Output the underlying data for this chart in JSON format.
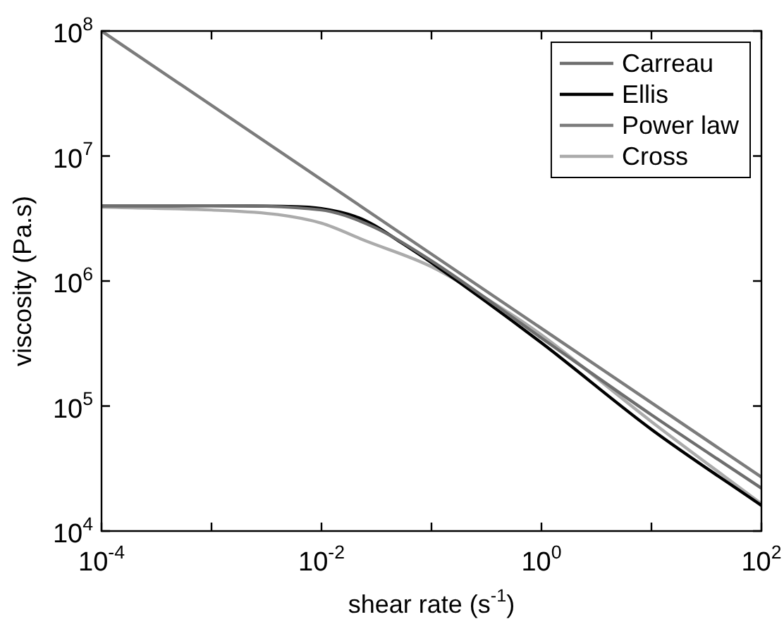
{
  "chart_data": {
    "type": "line",
    "xlabel": "shear rate (s$^{-1}$)",
    "ylabel": "viscosity (Pa.s)",
    "log": "xy",
    "grid": false,
    "legend": "top right",
    "marker": "none",
    "line_style": "solid",
    "xlim": [
      0.0001,
      100
    ],
    "ylim": [
      10000,
      100000000
    ],
    "xticks": [
      {
        "value": 0.0001,
        "label": "10$^{-4}$"
      },
      {
        "value": 0.001,
        "label": null
      },
      {
        "value": 0.01,
        "label": "10$^{-2}$"
      },
      {
        "value": 0.1,
        "label": null
      },
      {
        "value": 1,
        "label": "10$^{0}$"
      },
      {
        "value": 10,
        "label": null
      },
      {
        "value": 100,
        "label": "10$^{2}$"
      }
    ],
    "yticks": [
      {
        "value": 10000,
        "label": "10$^{4}$"
      },
      {
        "value": 100000,
        "label": "10$^{5}$"
      },
      {
        "value": 1000000,
        "label": "10$^{6}$"
      },
      {
        "value": 10000000,
        "label": "10$^{7}$"
      },
      {
        "value": 100000000,
        "label": "10$^{8}$"
      }
    ],
    "series": [
      {
        "name": "Carreau",
        "color": "#6e6e6e",
        "x": [
          0.0001,
          0.001,
          0.01,
          0.03,
          0.1,
          1,
          10,
          100
        ],
        "values": [
          4000000,
          4000000,
          3700000,
          2700000,
          1450000,
          350000,
          85000,
          22000
        ]
      },
      {
        "name": "Ellis",
        "color": "#000000",
        "x": [
          0.0001,
          0.001,
          0.005,
          0.01,
          0.02,
          0.03,
          0.05,
          0.1,
          1,
          10,
          100
        ],
        "values": [
          4000000,
          4000000,
          3950000,
          3800000,
          3300000,
          2800000,
          2100000,
          1400000,
          320000,
          65000,
          16000
        ]
      },
      {
        "name": "Power law",
        "color": "#7c7c7c",
        "x": [
          0.0001,
          100
        ],
        "values": [
          100000000,
          27000
        ]
      },
      {
        "name": "Cross",
        "color": "#ababab",
        "x": [
          0.0001,
          0.001,
          0.004,
          0.01,
          0.025,
          0.1,
          0.5,
          1,
          10,
          100
        ],
        "values": [
          3900000,
          3700000,
          3400000,
          2900000,
          2100000,
          1300000,
          560000,
          370000,
          75000,
          16500
        ]
      }
    ]
  }
}
